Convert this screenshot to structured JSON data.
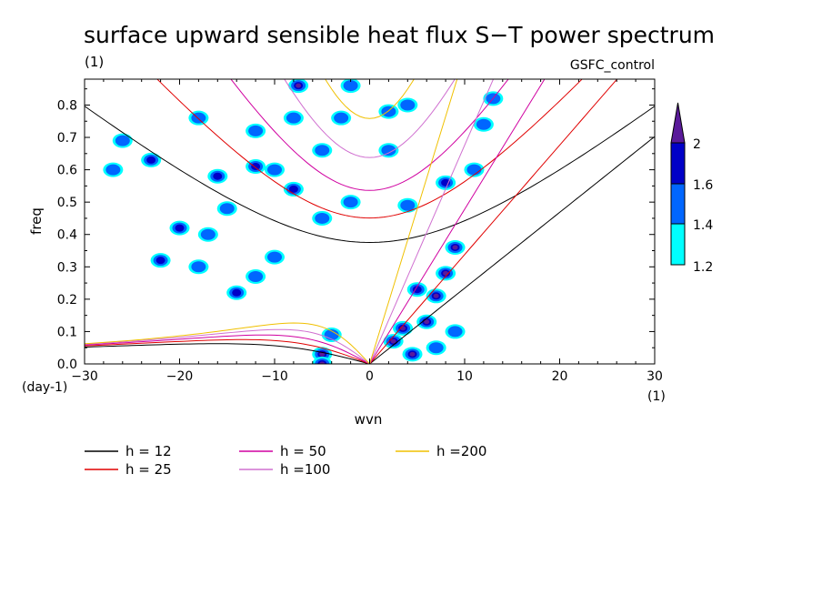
{
  "chart_data": {
    "type": "contour",
    "title": "surface upward sensible heat flux S−T power spectrum",
    "units_y": "(1)",
    "run_label": "GSFC_control",
    "xlabel": "wvn",
    "ylabel": "freq",
    "x_units": "(1)",
    "y_units": "(day-1)",
    "xlim": [
      -30,
      30
    ],
    "ylim": [
      0,
      0.88
    ],
    "x_ticks": [
      -30,
      -20,
      -10,
      0,
      10,
      20,
      30
    ],
    "x_tick_labels": [
      "−30",
      "−20",
      "−10",
      "0",
      "10",
      "20",
      "30"
    ],
    "y_ticks": [
      0,
      0.1,
      0.2,
      0.3,
      0.4,
      0.5,
      0.6,
      0.7,
      0.8
    ],
    "y_tick_labels": [
      "0.0",
      "0.1",
      "0.2",
      "0.3",
      "0.4",
      "0.5",
      "0.6",
      "0.7",
      "0.8"
    ],
    "colorbar": {
      "levels": [
        1.2,
        1.4,
        1.6,
        2
      ],
      "level_labels": [
        "1.2",
        "1.4",
        "1.6",
        "2"
      ],
      "colors": [
        "#00ffff",
        "#0066ff",
        "#0000c8",
        "#5a1a9a"
      ]
    },
    "dispersion_curves": [
      {
        "label": "h = 12",
        "h": 12,
        "color": "#000000"
      },
      {
        "label": "h = 25",
        "h": 25,
        "color": "#e00000"
      },
      {
        "label": "h = 50",
        "h": 50,
        "color": "#d000a0"
      },
      {
        "label": "h =100",
        "h": 100,
        "color": "#d070d0"
      },
      {
        "label": "h =200",
        "h": 200,
        "color": "#f0c000"
      }
    ],
    "blobs": [
      {
        "x": -7.5,
        "y": 0.86,
        "level": 3
      },
      {
        "x": -5,
        "y": 0.03,
        "level": 3
      },
      {
        "x": -5,
        "y": 0.0,
        "level": 3
      },
      {
        "x": -4,
        "y": 0.09,
        "level": 1
      },
      {
        "x": 2.5,
        "y": 0.07,
        "level": 3
      },
      {
        "x": 3.5,
        "y": 0.11,
        "level": 3
      },
      {
        "x": 4.5,
        "y": 0.03,
        "level": 3
      },
      {
        "x": 5,
        "y": 0.23,
        "level": 2
      },
      {
        "x": 6,
        "y": 0.13,
        "level": 3
      },
      {
        "x": 7,
        "y": 0.21,
        "level": 3
      },
      {
        "x": 8,
        "y": 0.28,
        "level": 3
      },
      {
        "x": 9,
        "y": 0.36,
        "level": 3
      },
      {
        "x": 11,
        "y": 0.6,
        "level": 1
      },
      {
        "x": 8,
        "y": 0.56,
        "level": 2
      },
      {
        "x": 4,
        "y": 0.49,
        "level": 1
      },
      {
        "x": 2,
        "y": 0.66,
        "level": 1
      },
      {
        "x": -2,
        "y": 0.5,
        "level": 1
      },
      {
        "x": -5,
        "y": 0.45,
        "level": 1
      },
      {
        "x": -8,
        "y": 0.54,
        "level": 2
      },
      {
        "x": -10,
        "y": 0.6,
        "level": 1
      },
      {
        "x": -12,
        "y": 0.61,
        "level": 2
      },
      {
        "x": -14,
        "y": 0.22,
        "level": 2
      },
      {
        "x": -15,
        "y": 0.48,
        "level": 1
      },
      {
        "x": -16,
        "y": 0.58,
        "level": 2
      },
      {
        "x": -17,
        "y": 0.4,
        "level": 1
      },
      {
        "x": -20,
        "y": 0.42,
        "level": 2
      },
      {
        "x": -22,
        "y": 0.32,
        "level": 2
      },
      {
        "x": -23,
        "y": 0.63,
        "level": 2
      },
      {
        "x": -26,
        "y": 0.69,
        "level": 1
      },
      {
        "x": -27,
        "y": 0.6,
        "level": 1
      },
      {
        "x": -12,
        "y": 0.72,
        "level": 1
      },
      {
        "x": -18,
        "y": 0.76,
        "level": 1
      },
      {
        "x": -3,
        "y": 0.76,
        "level": 1
      },
      {
        "x": 2,
        "y": 0.78,
        "level": 1
      },
      {
        "x": 4,
        "y": 0.8,
        "level": 1
      },
      {
        "x": -10,
        "y": 0.33,
        "level": 1
      },
      {
        "x": -12,
        "y": 0.27,
        "level": 1
      },
      {
        "x": -18,
        "y": 0.3,
        "level": 1
      },
      {
        "x": 12,
        "y": 0.74,
        "level": 1
      },
      {
        "x": 13,
        "y": 0.82,
        "level": 1
      },
      {
        "x": -5,
        "y": 0.66,
        "level": 1
      },
      {
        "x": -8,
        "y": 0.76,
        "level": 1
      },
      {
        "x": -2,
        "y": 0.86,
        "level": 1
      },
      {
        "x": 9,
        "y": 0.1,
        "level": 1
      },
      {
        "x": 7,
        "y": 0.05,
        "level": 1
      }
    ]
  }
}
